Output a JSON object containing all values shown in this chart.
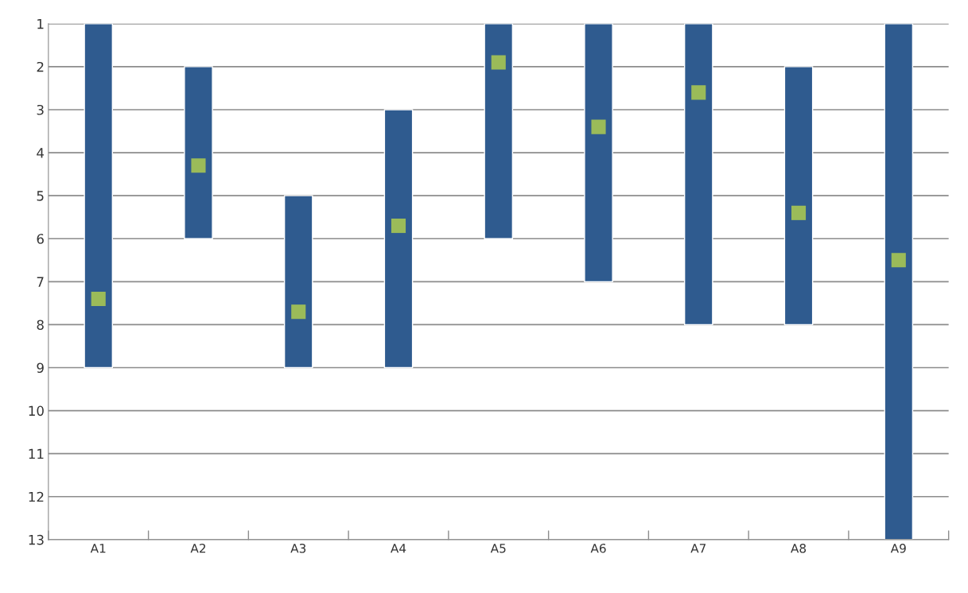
{
  "chart_data": {
    "type": "bar",
    "categories": [
      "A1",
      "A2",
      "A3",
      "A4",
      "A5",
      "A6",
      "A7",
      "A8",
      "A9"
    ],
    "series": [
      {
        "color": "#2f5b8f",
        "base": [
          1,
          2,
          5,
          3,
          1,
          1,
          1,
          2,
          1
        ],
        "values": [
          8,
          4,
          4,
          6,
          5,
          6,
          7,
          6,
          12
        ]
      },
      {
        "type": "scatter",
        "color": "#9bbb59",
        "marker": "square",
        "values": [
          7.4,
          4.3,
          7.7,
          5.7,
          1.9,
          3.4,
          2.6,
          5.4,
          6.5
        ]
      }
    ],
    "ylim": [
      13,
      1
    ],
    "yticks": [
      1,
      2,
      3,
      4,
      5,
      6,
      7,
      8,
      9,
      10,
      11,
      12,
      13
    ],
    "grid": "y",
    "legend": false
  }
}
